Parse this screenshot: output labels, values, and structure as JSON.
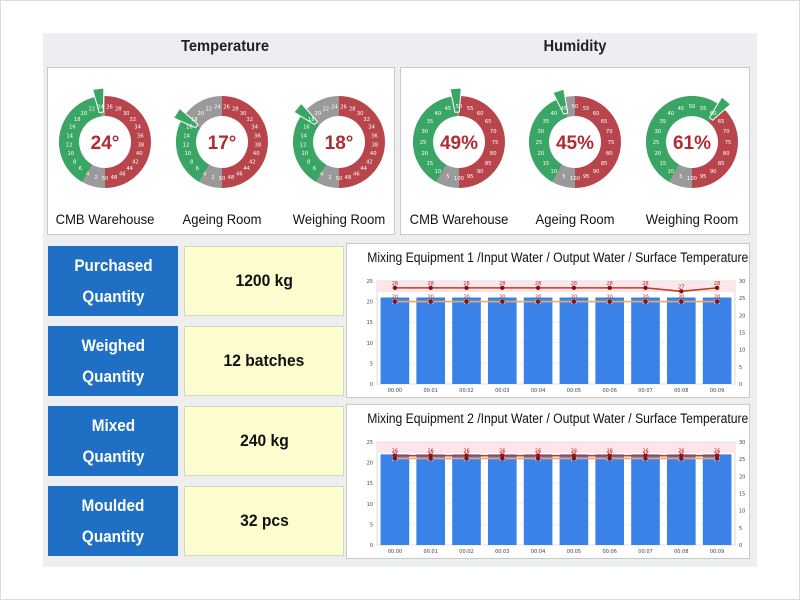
{
  "sections": {
    "temperature_title": "Temperature",
    "humidity_title": "Humidity"
  },
  "temperature_gauges": [
    {
      "name": "CMB Warehouse",
      "value": 24,
      "display": "24°",
      "scale_min": 0,
      "scale_max": 50,
      "scale_labels": [
        "0",
        "2",
        "4",
        "6",
        "8",
        "10",
        "12",
        "14",
        "16",
        "18",
        "20",
        "22",
        "24",
        "26",
        "28",
        "30",
        "32",
        "34",
        "36",
        "38",
        "40",
        "42",
        "44",
        "46",
        "48",
        "50"
      ]
    },
    {
      "name": "Ageing  Room",
      "value": 17,
      "display": "17°",
      "scale_min": 0,
      "scale_max": 50,
      "scale_labels": [
        "0",
        "2",
        "4",
        "6",
        "8",
        "10",
        "12",
        "14",
        "16",
        "18",
        "20",
        "22",
        "24",
        "26",
        "28",
        "30",
        "32",
        "34",
        "36",
        "38",
        "40",
        "42",
        "44",
        "46",
        "48",
        "50"
      ]
    },
    {
      "name": "Weighing  Room",
      "value": 18,
      "display": "18°",
      "scale_min": 0,
      "scale_max": 50,
      "scale_labels": [
        "0",
        "2",
        "4",
        "6",
        "8",
        "10",
        "12",
        "14",
        "16",
        "18",
        "20",
        "22",
        "24",
        "26",
        "28",
        "30",
        "32",
        "34",
        "36",
        "38",
        "40",
        "42",
        "44",
        "46",
        "48",
        "50"
      ]
    }
  ],
  "humidity_gauges": [
    {
      "name": "CMB Warehouse",
      "value": 49,
      "display": "49%",
      "scale_min": 0,
      "scale_max": 100,
      "scale_labels": [
        "0",
        "5",
        "10",
        "15",
        "20",
        "25",
        "30",
        "35",
        "40",
        "45",
        "50",
        "55",
        "60",
        "65",
        "70",
        "75",
        "80",
        "85",
        "90",
        "95",
        "100"
      ]
    },
    {
      "name": "Ageing  Room",
      "value": 45,
      "display": "45%",
      "scale_min": 0,
      "scale_max": 100,
      "scale_labels": [
        "0",
        "5",
        "10",
        "15",
        "20",
        "25",
        "30",
        "35",
        "40",
        "45",
        "50",
        "55",
        "60",
        "65",
        "70",
        "75",
        "80",
        "85",
        "90",
        "95",
        "100"
      ]
    },
    {
      "name": "Weighing  Room",
      "value": 61,
      "display": "61%",
      "scale_min": 0,
      "scale_max": 100,
      "scale_labels": [
        "0",
        "5",
        "10",
        "15",
        "20",
        "25",
        "30",
        "35",
        "40",
        "45",
        "50",
        "55",
        "60",
        "65",
        "70",
        "75",
        "80",
        "85",
        "90",
        "95",
        "100"
      ]
    }
  ],
  "kpis": [
    {
      "label_line1": "Purchased",
      "label_line2": "Quantity",
      "value": "1200 kg"
    },
    {
      "label_line1": "Weighed",
      "label_line2": "Quantity",
      "value": "12 batches"
    },
    {
      "label_line1": "Mixed",
      "label_line2": "Quantity",
      "value": "240 kg"
    },
    {
      "label_line1": "Moulded",
      "label_line2": "Quantity",
      "value": "32 pcs"
    }
  ],
  "colors": {
    "hot": "#b8454c",
    "ok": "#3aa665",
    "cool": "#9a9a9a",
    "kpi_blue": "#1f6fc4",
    "kpi_value_bg": "#fdfdcf",
    "bar": "#3b82e8",
    "line_red": "#c0392b",
    "line_orange": "#f0a860"
  },
  "chart_data": [
    {
      "type": "bar",
      "title": "Mixing Equipment 1 /Input Water / Output Water / Surface Temperature",
      "categories": [
        "00:00",
        "00:01",
        "00:02",
        "00:03",
        "00:04",
        "00:05",
        "00:06",
        "00:07",
        "00:08",
        "00:09"
      ],
      "ylim": [
        0,
        25
      ],
      "y2lim": [
        0,
        30
      ],
      "yticks": [
        0,
        5,
        10,
        15,
        20,
        25
      ],
      "y2ticks": [
        0,
        5,
        10,
        15,
        20,
        25,
        30
      ],
      "series": [
        {
          "name": "Input Water",
          "kind": "bar",
          "axis": "left",
          "values": [
            21,
            21,
            21,
            21,
            21,
            21,
            21,
            21,
            21,
            21
          ]
        },
        {
          "name": "Output Water",
          "kind": "line",
          "axis": "right",
          "color": "#c0392b",
          "values": [
            28,
            28,
            28,
            28,
            28,
            28,
            28,
            28,
            27,
            28
          ]
        },
        {
          "name": "Surface Temperature",
          "kind": "line",
          "axis": "left",
          "color": "#f0a860",
          "values": [
            20,
            20,
            20,
            20,
            20,
            20,
            20,
            20,
            20,
            20
          ]
        }
      ]
    },
    {
      "type": "bar",
      "title": "Mixing Equipment 2   /Input Water / Output Water / Surface Temperature",
      "categories": [
        "00:00",
        "00:01",
        "00:02",
        "00:03",
        "00:04",
        "00:05",
        "00:06",
        "00:07",
        "00:08",
        "00:09"
      ],
      "ylim": [
        0,
        25
      ],
      "y2lim": [
        0,
        30
      ],
      "yticks": [
        0,
        5,
        10,
        15,
        20,
        25
      ],
      "y2ticks": [
        0,
        5,
        10,
        15,
        20,
        25,
        30
      ],
      "series": [
        {
          "name": "Input Water",
          "kind": "bar",
          "axis": "left",
          "values": [
            22,
            22,
            22,
            22,
            22,
            22,
            22,
            22,
            22,
            22
          ]
        },
        {
          "name": "Output Water",
          "kind": "line",
          "axis": "right",
          "color": "#c0392b",
          "values": [
            26,
            26,
            26,
            26,
            26,
            26,
            26,
            26,
            26,
            26
          ]
        },
        {
          "name": "Surface Temperature",
          "kind": "line",
          "axis": "left",
          "color": "#f0a860",
          "values": [
            21,
            21,
            21,
            21,
            21,
            21,
            21,
            21,
            21,
            21
          ]
        }
      ]
    }
  ]
}
